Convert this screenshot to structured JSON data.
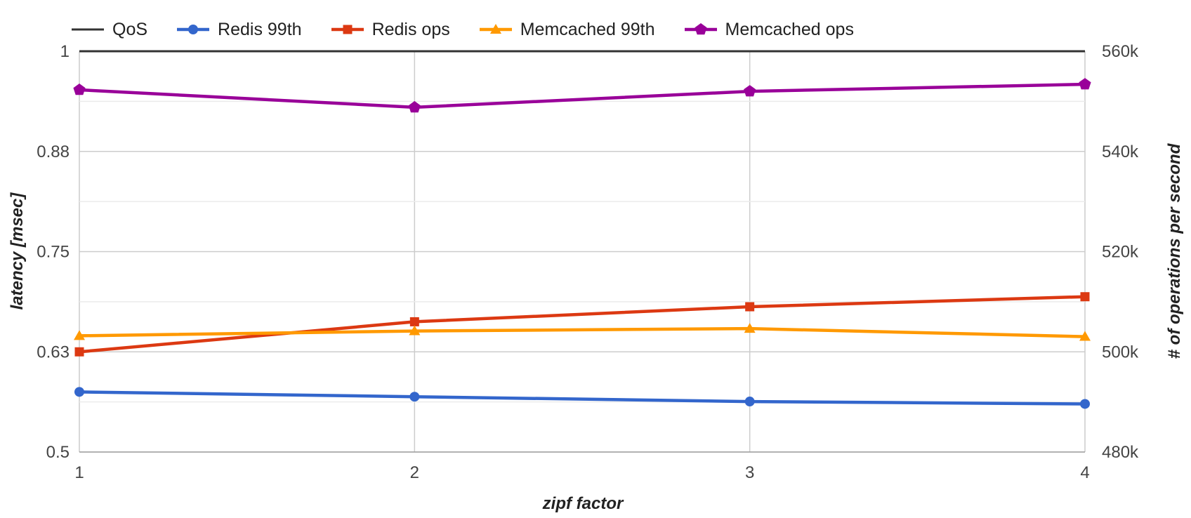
{
  "chart_data": {
    "type": "line",
    "xlabel": "zipf factor",
    "ylabel_left": "latency [msec]",
    "ylabel_right": "# of operations per second",
    "x": [
      1,
      2,
      3,
      4
    ],
    "x_tick_labels": [
      "1",
      "2",
      "3",
      "4"
    ],
    "left_axis": {
      "ylim": [
        0.5,
        1.0
      ],
      "tick_values": [
        0.5,
        0.625,
        0.75,
        0.875,
        1.0
      ],
      "tick_labels": [
        "0.5",
        "0.63",
        "0.75",
        "0.88",
        "1"
      ]
    },
    "right_axis": {
      "ylim": [
        480000,
        560000
      ],
      "tick_values": [
        480000,
        500000,
        520000,
        540000,
        560000
      ],
      "tick_labels": [
        "480k",
        "500k",
        "520k",
        "540k",
        "560k"
      ]
    },
    "grid": true,
    "legend_position": "top-left",
    "series": [
      {
        "name": "QoS",
        "axis": "left",
        "color": "#333333",
        "marker": "none",
        "values": [
          1.0,
          1.0,
          1.0,
          1.0
        ]
      },
      {
        "name": "Redis 99th",
        "axis": "left",
        "color": "#3366cc",
        "marker": "circle",
        "values": [
          0.575,
          0.569,
          0.563,
          0.56
        ]
      },
      {
        "name": "Redis ops",
        "axis": "right",
        "color": "#dc3912",
        "marker": "square",
        "values": [
          500000,
          506000,
          509000,
          511000
        ]
      },
      {
        "name": "Memcached 99th",
        "axis": "left",
        "color": "#ff9900",
        "marker": "triangle",
        "values": [
          0.645,
          0.651,
          0.654,
          0.644
        ]
      },
      {
        "name": "Memcached ops",
        "axis": "right",
        "color": "#990099",
        "marker": "pentagon",
        "values": [
          552300,
          548800,
          552000,
          553400
        ]
      }
    ]
  }
}
